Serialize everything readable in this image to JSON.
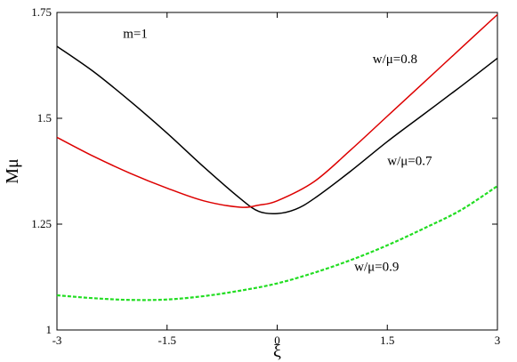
{
  "chart_data": {
    "type": "line",
    "xlabel": "ξ",
    "ylabel": "Mμ",
    "xlim": [
      -3,
      3
    ],
    "ylim": [
      1,
      1.75
    ],
    "x_ticks": [
      -3,
      -1.5,
      0,
      1.5,
      3
    ],
    "x_tick_labels": [
      "-3",
      "-1.5",
      "0",
      "1.5",
      "3"
    ],
    "y_ticks": [
      1,
      1.25,
      1.5,
      1.75
    ],
    "y_tick_labels": [
      "1",
      "1.25",
      "1.5",
      "1.75"
    ],
    "grid": false,
    "annotations": [
      {
        "text": "m=1",
        "x": -2.1,
        "y": 1.69
      },
      {
        "text": "w/μ=0.8",
        "x": 1.3,
        "y": 1.63
      },
      {
        "text": "w/μ=0.7",
        "x": 1.5,
        "y": 1.39
      },
      {
        "text": "w/μ=0.9",
        "x": 1.05,
        "y": 1.14
      }
    ],
    "series": [
      {
        "color": "#000000",
        "dash": "solid",
        "x": [
          -3,
          -2.5,
          -2,
          -1.5,
          -1,
          -0.5,
          -0.25,
          0,
          0.25,
          0.5,
          1,
          1.5,
          2,
          2.5,
          3
        ],
        "y": [
          1.67,
          1.61,
          1.54,
          1.465,
          1.385,
          1.31,
          1.28,
          1.275,
          1.285,
          1.31,
          1.375,
          1.445,
          1.51,
          1.575,
          1.642
        ]
      },
      {
        "color": "#dd0000",
        "dash": "solid",
        "x": [
          -3,
          -2.5,
          -2,
          -1.5,
          -1,
          -0.5,
          -0.25,
          0,
          0.5,
          1,
          1.5,
          2,
          2.5,
          3
        ],
        "y": [
          1.455,
          1.41,
          1.37,
          1.335,
          1.305,
          1.29,
          1.295,
          1.305,
          1.35,
          1.425,
          1.505,
          1.585,
          1.665,
          1.745
        ]
      },
      {
        "color": "#22dd22",
        "dash": "dashed",
        "x": [
          -3,
          -2.5,
          -2,
          -1.5,
          -1,
          -0.5,
          0,
          0.5,
          1,
          1.5,
          2,
          2.5,
          3
        ],
        "y": [
          1.082,
          1.075,
          1.071,
          1.072,
          1.08,
          1.093,
          1.11,
          1.135,
          1.165,
          1.2,
          1.24,
          1.283,
          1.34
        ]
      }
    ]
  }
}
